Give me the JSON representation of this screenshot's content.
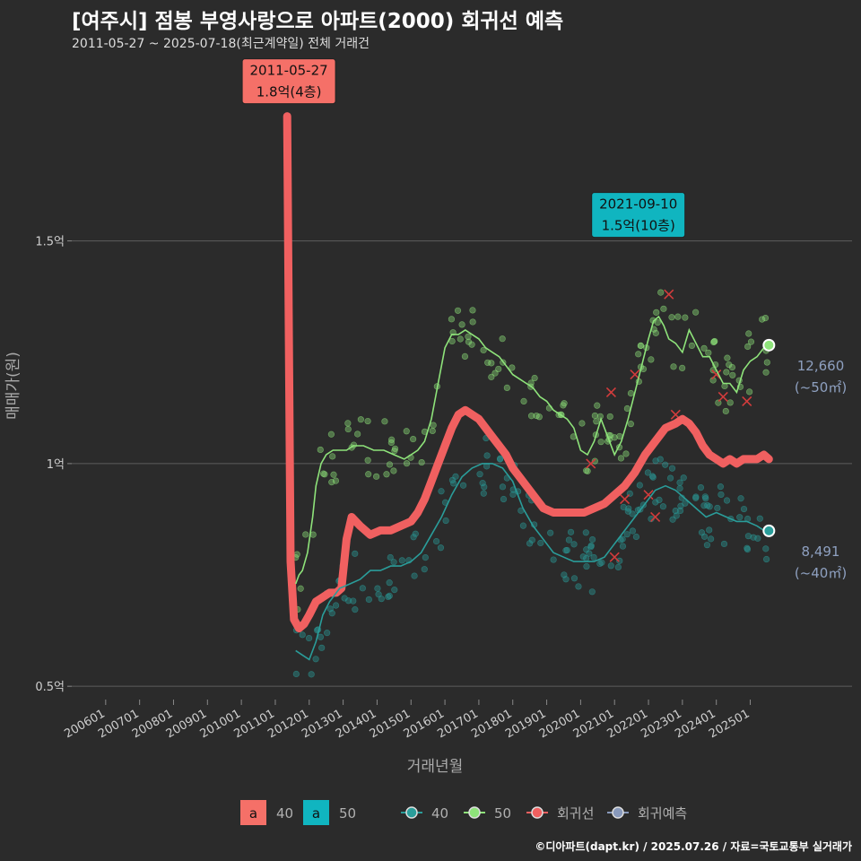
{
  "title": "[여주시] 점봉 부영사랑으로 아파트(2000) 회귀선 예측",
  "subtitle": "2011-05-27 ~ 2025-07-18(최근계약일) 전체 거래건",
  "credit": "©디아파트(dapt.kr) / 2025.07.26 / 자료=국토교통부 실거래가",
  "colors": {
    "background": "#2b2b2b",
    "area40": "#2a9d9a",
    "area50": "#8ee37a",
    "regression": "#f06060",
    "forecast": "#8899bb",
    "label40_fill": "#f57068",
    "label50_fill": "#10b5c0",
    "end_label": "#8ea0c0"
  },
  "chart_data": {
    "type": "line",
    "xlabel": "거래년월",
    "ylabel": "매매가(원)",
    "ylim": [
      0.45,
      1.9
    ],
    "xlim": [
      2005.0,
      2028.0
    ],
    "y_ticks": [
      {
        "value": 0.5,
        "label": "0.5억"
      },
      {
        "value": 1.0,
        "label": "1억"
      },
      {
        "value": 1.5,
        "label": "1.5억"
      }
    ],
    "x_ticks": [
      "200601",
      "200701",
      "200801",
      "200901",
      "201001",
      "201101",
      "201201",
      "201301",
      "201401",
      "201501",
      "201601",
      "201701",
      "201801",
      "201901",
      "202001",
      "202101",
      "202201",
      "202301",
      "202401",
      "202501"
    ],
    "grid": true,
    "legend_position": "bottom",
    "legend": {
      "fill_items": [
        {
          "key": "a",
          "label": "40",
          "color": "#f57068"
        },
        {
          "key": "a",
          "label": "50",
          "color": "#10b5c0"
        }
      ],
      "line_items": [
        {
          "label": "40",
          "color": "#2a9d9a"
        },
        {
          "label": "50",
          "color": "#8ee37a"
        },
        {
          "label": "회귀선",
          "color": "#f06060"
        },
        {
          "label": "회귀예측",
          "color": "#8899bb"
        }
      ]
    },
    "annotations": [
      {
        "date": "2011-05-27",
        "price": "1.8억(4층)",
        "x": 2011.4,
        "y": 1.8,
        "color": "#f57068"
      },
      {
        "date": "2021-09-10",
        "price": "1.5억(10층)",
        "x": 2021.7,
        "y": 1.5,
        "color": "#10b5c0"
      }
    ],
    "end_labels": [
      {
        "value": "12,660",
        "area": "(~50㎡)",
        "x": 2025.55,
        "y": 1.266,
        "color": "#8ee37a"
      },
      {
        "value": "8,491",
        "area": "(~40㎡)",
        "x": 2025.55,
        "y": 0.849,
        "color": "#2a9d9a"
      }
    ],
    "series": [
      {
        "name": "회귀선",
        "role": "regression",
        "x": [
          2011.35,
          2011.45,
          2011.55,
          2011.7,
          2011.85,
          2012.0,
          2012.2,
          2012.4,
          2012.6,
          2012.8,
          2012.95,
          2013.1,
          2013.25,
          2013.5,
          2013.8,
          2014.1,
          2014.4,
          2014.7,
          2015.0,
          2015.2,
          2015.4,
          2015.6,
          2015.8,
          2016.0,
          2016.2,
          2016.4,
          2016.6,
          2016.8,
          2017.0,
          2017.2,
          2017.4,
          2017.6,
          2017.8,
          2018.0,
          2018.3,
          2018.6,
          2018.9,
          2019.2,
          2019.5,
          2019.8,
          2020.1,
          2020.4,
          2020.7,
          2021.0,
          2021.3,
          2021.6,
          2021.9,
          2022.2,
          2022.5,
          2022.8,
          2023.0,
          2023.2,
          2023.4,
          2023.6,
          2023.8,
          2024.0,
          2024.2,
          2024.4,
          2024.6,
          2024.8,
          2025.0,
          2025.2,
          2025.4,
          2025.55
        ],
        "y": [
          1.78,
          0.78,
          0.65,
          0.63,
          0.64,
          0.66,
          0.69,
          0.7,
          0.71,
          0.71,
          0.72,
          0.83,
          0.88,
          0.86,
          0.84,
          0.85,
          0.85,
          0.86,
          0.87,
          0.89,
          0.92,
          0.96,
          1.0,
          1.04,
          1.08,
          1.11,
          1.12,
          1.11,
          1.1,
          1.08,
          1.06,
          1.04,
          1.02,
          0.99,
          0.96,
          0.93,
          0.9,
          0.89,
          0.89,
          0.89,
          0.89,
          0.9,
          0.91,
          0.93,
          0.95,
          0.98,
          1.02,
          1.05,
          1.08,
          1.09,
          1.1,
          1.09,
          1.07,
          1.04,
          1.02,
          1.01,
          1.0,
          1.01,
          1.0,
          1.01,
          1.01,
          1.01,
          1.02,
          1.01
        ]
      },
      {
        "name": "50",
        "role": "area-line",
        "x": [
          2011.6,
          2011.7,
          2011.8,
          2011.95,
          2012.1,
          2012.2,
          2012.35,
          2012.5,
          2012.7,
          2012.9,
          2013.1,
          2013.3,
          2013.6,
          2013.9,
          2014.2,
          2014.5,
          2014.8,
          2015.0,
          2015.2,
          2015.4,
          2015.6,
          2015.8,
          2016.0,
          2016.2,
          2016.4,
          2016.6,
          2016.8,
          2017.0,
          2017.2,
          2017.4,
          2017.6,
          2017.8,
          2018.0,
          2018.2,
          2018.4,
          2018.6,
          2018.8,
          2019.0,
          2019.2,
          2019.4,
          2019.6,
          2019.8,
          2020.0,
          2020.2,
          2020.4,
          2020.6,
          2020.8,
          2021.0,
          2021.2,
          2021.4,
          2021.6,
          2021.8,
          2022.0,
          2022.15,
          2022.3,
          2022.45,
          2022.6,
          2022.8,
          2023.0,
          2023.2,
          2023.4,
          2023.6,
          2023.8,
          2024.0,
          2024.2,
          2024.4,
          2024.6,
          2024.8,
          2025.0,
          2025.2,
          2025.4,
          2025.55
        ],
        "y": [
          0.73,
          0.75,
          0.76,
          0.8,
          0.88,
          0.95,
          1.0,
          1.02,
          1.03,
          1.03,
          1.03,
          1.04,
          1.04,
          1.03,
          1.03,
          1.02,
          1.01,
          1.02,
          1.03,
          1.05,
          1.1,
          1.18,
          1.26,
          1.29,
          1.29,
          1.3,
          1.29,
          1.28,
          1.26,
          1.25,
          1.24,
          1.22,
          1.2,
          1.19,
          1.18,
          1.17,
          1.15,
          1.14,
          1.12,
          1.11,
          1.1,
          1.08,
          1.03,
          1.02,
          1.05,
          1.1,
          1.06,
          1.02,
          1.05,
          1.1,
          1.16,
          1.22,
          1.28,
          1.32,
          1.33,
          1.31,
          1.28,
          1.27,
          1.25,
          1.3,
          1.27,
          1.24,
          1.24,
          1.21,
          1.18,
          1.18,
          1.16,
          1.21,
          1.23,
          1.24,
          1.26,
          1.27
        ]
      },
      {
        "name": "40",
        "role": "area-line",
        "x": [
          2011.6,
          2011.8,
          2012.0,
          2012.2,
          2012.4,
          2012.6,
          2012.9,
          2013.2,
          2013.5,
          2013.8,
          2014.1,
          2014.4,
          2014.7,
          2015.0,
          2015.3,
          2015.6,
          2015.9,
          2016.2,
          2016.5,
          2016.8,
          2017.1,
          2017.4,
          2017.7,
          2018.0,
          2018.3,
          2018.6,
          2018.9,
          2019.2,
          2019.5,
          2019.8,
          2020.1,
          2020.4,
          2020.7,
          2021.0,
          2021.3,
          2021.6,
          2021.9,
          2022.2,
          2022.5,
          2022.8,
          2023.1,
          2023.4,
          2023.7,
          2024.0,
          2024.3,
          2024.6,
          2024.9,
          2025.2,
          2025.4,
          2025.55
        ],
        "y": [
          0.58,
          0.57,
          0.56,
          0.6,
          0.66,
          0.69,
          0.72,
          0.73,
          0.74,
          0.76,
          0.76,
          0.77,
          0.77,
          0.78,
          0.8,
          0.84,
          0.88,
          0.93,
          0.97,
          0.99,
          1.0,
          1.0,
          0.99,
          0.96,
          0.9,
          0.86,
          0.83,
          0.8,
          0.79,
          0.78,
          0.78,
          0.78,
          0.79,
          0.82,
          0.85,
          0.88,
          0.91,
          0.94,
          0.95,
          0.94,
          0.92,
          0.9,
          0.88,
          0.89,
          0.88,
          0.87,
          0.87,
          0.86,
          0.85,
          0.85
        ]
      }
    ]
  }
}
